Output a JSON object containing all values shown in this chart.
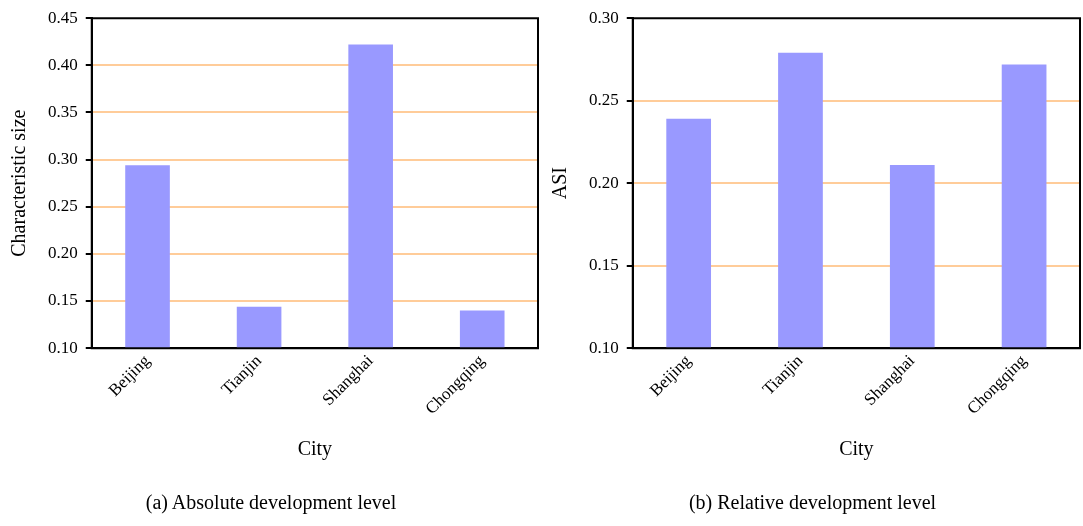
{
  "chart_data": [
    {
      "type": "bar",
      "title": "(a) Absolute development level",
      "xlabel": "City",
      "ylabel": "Characteristic size",
      "categories": [
        "Beijing",
        "Tianjin",
        "Shanghai",
        "Chongqing"
      ],
      "series": [
        {
          "color": "#9999ff",
          "values": [
            0.294,
            0.144,
            0.422,
            0.14
          ]
        }
      ],
      "ylim": [
        0.1,
        0.45
      ],
      "yticks": [
        {
          "value": 0.1,
          "label": "0.10"
        },
        {
          "value": 0.15,
          "label": "0.15"
        },
        {
          "value": 0.2,
          "label": "0.20"
        },
        {
          "value": 0.25,
          "label": "0.25"
        },
        {
          "value": 0.3,
          "label": "0.30"
        },
        {
          "value": 0.35,
          "label": "0.35"
        },
        {
          "value": 0.4,
          "label": "0.40"
        },
        {
          "value": 0.45,
          "label": "0.45"
        }
      ],
      "grid": "y",
      "legend": false
    },
    {
      "type": "bar",
      "title": "(b) Relative development level",
      "xlabel": "City",
      "ylabel": "ASI",
      "categories": [
        "Beijing",
        "Tianjin",
        "Shanghai",
        "Chongqing"
      ],
      "series": [
        {
          "color": "#9999ff",
          "values": [
            0.239,
            0.279,
            0.211,
            0.272
          ]
        }
      ],
      "ylim": [
        0.1,
        0.3
      ],
      "yticks": [
        {
          "value": 0.1,
          "label": "0.10"
        },
        {
          "value": 0.15,
          "label": "0.15"
        },
        {
          "value": 0.2,
          "label": "0.20"
        },
        {
          "value": 0.25,
          "label": "0.25"
        },
        {
          "value": 0.3,
          "label": "0.30"
        }
      ],
      "grid": "y",
      "legend": false
    }
  ]
}
